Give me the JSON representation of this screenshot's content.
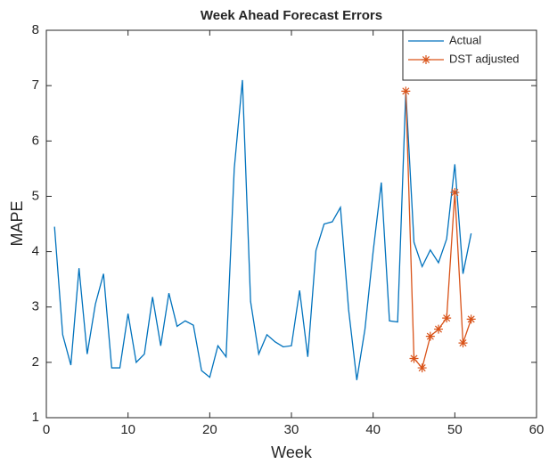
{
  "chart_data": {
    "type": "line",
    "title": "Week Ahead Forecast Errors",
    "x_label": "Week",
    "y_label": "MAPE",
    "xlim": [
      0,
      60
    ],
    "xticks": [
      0,
      10,
      20,
      30,
      40,
      50,
      60
    ],
    "ylim": [
      1,
      8
    ],
    "yticks": [
      1,
      2,
      3,
      4,
      5,
      6,
      7,
      8
    ],
    "legend": "northeast",
    "series": [
      {
        "name": "Actual",
        "color": "#0072bd",
        "marker": "none",
        "x": [
          1,
          2,
          3,
          4,
          5,
          6,
          7,
          8,
          9,
          10,
          11,
          12,
          13,
          14,
          15,
          16,
          17,
          18,
          19,
          20,
          21,
          22,
          23,
          24,
          25,
          26,
          27,
          28,
          29,
          30,
          31,
          32,
          33,
          34,
          35,
          36,
          37,
          38,
          39,
          40,
          41,
          42,
          43,
          44,
          45,
          46,
          47,
          48,
          49,
          50,
          51,
          52
        ],
        "values": [
          4.45,
          2.5,
          1.95,
          3.7,
          2.15,
          3.05,
          3.6,
          1.9,
          1.9,
          2.88,
          2.0,
          2.15,
          3.18,
          2.3,
          3.25,
          2.65,
          2.75,
          2.67,
          1.85,
          1.73,
          2.3,
          2.1,
          5.5,
          7.1,
          3.1,
          2.15,
          2.5,
          2.37,
          2.28,
          2.3,
          3.3,
          2.1,
          4.02,
          4.5,
          4.54,
          4.8,
          2.95,
          1.68,
          2.6,
          4.0,
          5.25,
          2.75,
          2.73,
          6.9,
          4.17,
          3.73,
          4.03,
          3.8,
          4.23,
          5.58,
          3.6,
          4.33
        ]
      },
      {
        "name": "DST adjusted",
        "color": "#d95319",
        "marker": "*",
        "x": [
          44,
          45,
          46,
          47,
          48,
          49,
          50,
          51,
          52
        ],
        "values": [
          6.9,
          2.07,
          1.9,
          2.47,
          2.6,
          2.8,
          5.07,
          2.35,
          2.78
        ]
      }
    ]
  }
}
